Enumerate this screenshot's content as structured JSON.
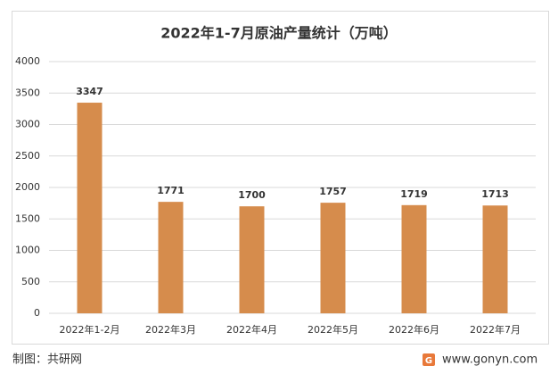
{
  "chart_data": {
    "type": "bar",
    "title": "2022年1-7月原油产量统计（万吨）",
    "categories": [
      "2022年1-2月",
      "2022年3月",
      "2022年4月",
      "2022年5月",
      "2022年6月",
      "2022年7月"
    ],
    "values": [
      3347,
      1771,
      1700,
      1757,
      1719,
      1713
    ],
    "color": "#d68c4c",
    "ylim": [
      0,
      4000
    ],
    "yticks": [
      0,
      500,
      1000,
      1500,
      2000,
      2500,
      3000,
      3500,
      4000
    ],
    "grid": true
  },
  "footer": {
    "credit": "制图：共研网",
    "website": "www.gonyn.com"
  }
}
